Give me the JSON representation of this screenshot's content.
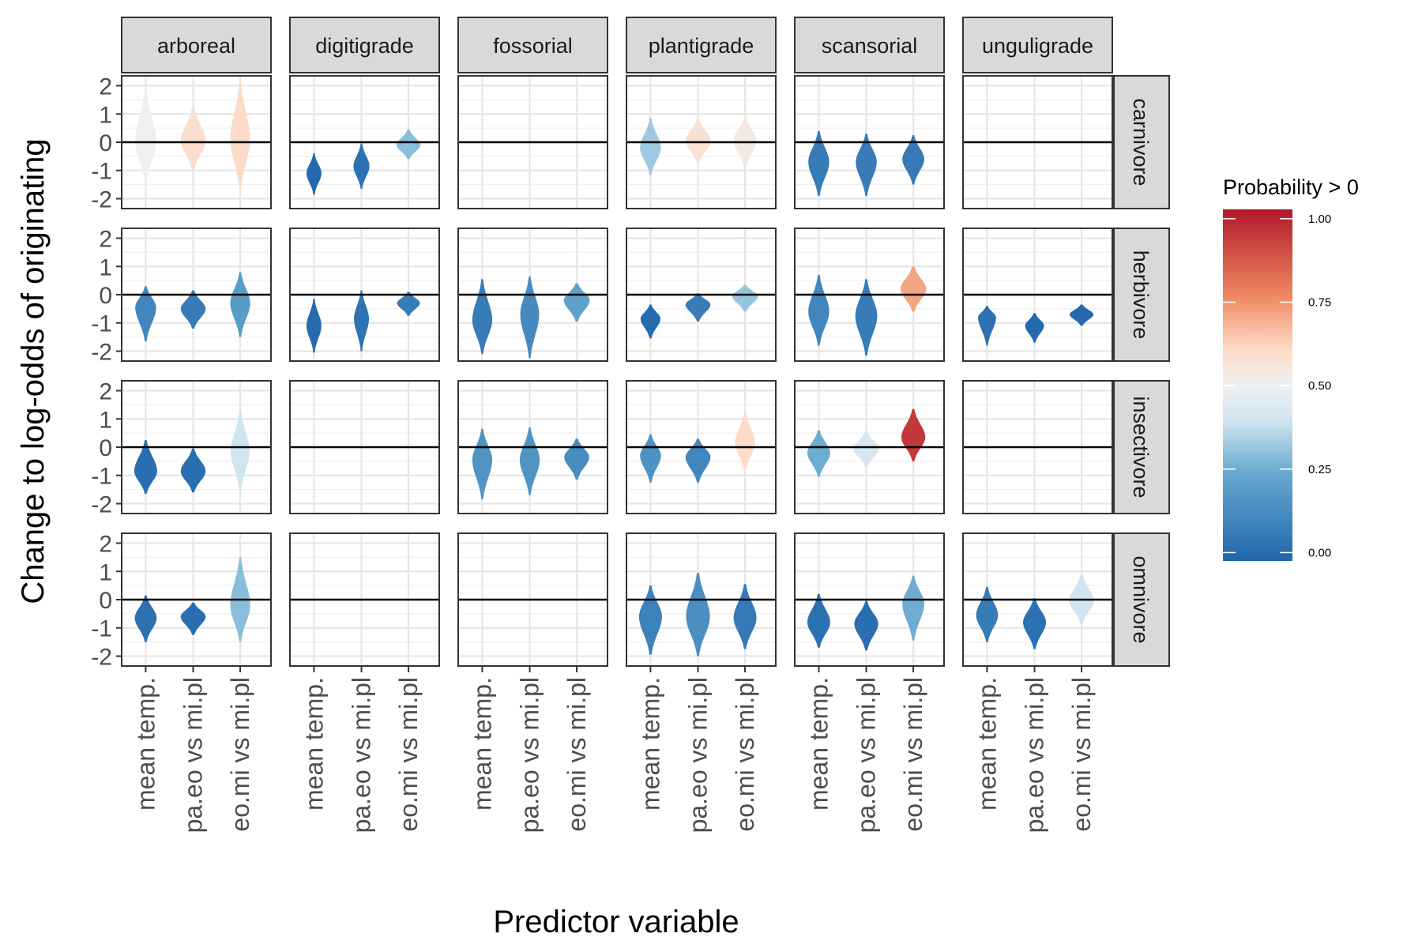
{
  "chart_data": {
    "type": "violin",
    "xlabel": "Predictor variable",
    "ylabel": "Change to log-odds of originating",
    "ylim": [
      -2.35,
      2.35
    ],
    "yticks": [
      2,
      1,
      0,
      -1,
      -2
    ],
    "ytick_labels": [
      "2",
      "1",
      "0",
      "-1",
      "-2"
    ],
    "reference_line": 0,
    "column_facets": [
      "arboreal",
      "digitigrade",
      "fossorial",
      "plantigrade",
      "scansorial",
      "unguligrade"
    ],
    "row_facets": [
      "carnivore",
      "herbivore",
      "insectivore",
      "omnivore"
    ],
    "categories": [
      "mean temp.",
      "pa.eo vs mi.pl",
      "eo.mi vs mi.pl"
    ],
    "legend": {
      "title": "Probability > 0",
      "ticks": [
        1.0,
        0.75,
        0.5,
        0.25,
        0.0
      ],
      "tick_labels": [
        "1.00",
        "0.75",
        "0.50",
        "0.25",
        "0.00"
      ],
      "colors": [
        "#B2182B",
        "#EF8A62",
        "#FDDBC7",
        "#F7F7F7",
        "#D1E5F0",
        "#67A9CF",
        "#2166AC"
      ],
      "position": "right"
    },
    "violins": [
      {
        "row": "carnivore",
        "col": "arboreal",
        "cat": "mean temp.",
        "center": 0.0,
        "min": -1.4,
        "max": 1.9,
        "width": 0.42,
        "prob": 0.49
      },
      {
        "row": "carnivore",
        "col": "arboreal",
        "cat": "pa.eo vs mi.pl",
        "center": 0.05,
        "min": -1.0,
        "max": 1.25,
        "width": 0.5,
        "prob": 0.58
      },
      {
        "row": "carnivore",
        "col": "arboreal",
        "cat": "eo.mi vs mi.pl",
        "center": 0.1,
        "min": -1.65,
        "max": 2.1,
        "width": 0.4,
        "prob": 0.6
      },
      {
        "row": "carnivore",
        "col": "digitigrade",
        "cat": "mean temp.",
        "center": -1.1,
        "min": -1.85,
        "max": -0.4,
        "width": 0.3,
        "prob": 0.01
      },
      {
        "row": "carnivore",
        "col": "digitigrade",
        "cat": "pa.eo vs mi.pl",
        "center": -0.85,
        "min": -1.65,
        "max": -0.05,
        "width": 0.32,
        "prob": 0.04
      },
      {
        "row": "carnivore",
        "col": "digitigrade",
        "cat": "eo.mi vs mi.pl",
        "center": -0.1,
        "min": -0.6,
        "max": 0.45,
        "width": 0.48,
        "prob": 0.3
      },
      {
        "row": "carnivore",
        "col": "plantigrade",
        "cat": "mean temp.",
        "center": -0.2,
        "min": -1.15,
        "max": 0.85,
        "width": 0.42,
        "prob": 0.33
      },
      {
        "row": "carnivore",
        "col": "plantigrade",
        "cat": "pa.eo vs mi.pl",
        "center": 0.05,
        "min": -0.75,
        "max": 0.85,
        "width": 0.5,
        "prob": 0.57
      },
      {
        "row": "carnivore",
        "col": "plantigrade",
        "cat": "eo.mi vs mi.pl",
        "center": 0.05,
        "min": -0.9,
        "max": 0.9,
        "width": 0.46,
        "prob": 0.54
      },
      {
        "row": "carnivore",
        "col": "scansorial",
        "cat": "mean temp.",
        "center": -0.7,
        "min": -1.9,
        "max": 0.4,
        "width": 0.42,
        "prob": 0.08
      },
      {
        "row": "carnivore",
        "col": "scansorial",
        "cat": "pa.eo vs mi.pl",
        "center": -0.7,
        "min": -1.9,
        "max": 0.3,
        "width": 0.42,
        "prob": 0.08
      },
      {
        "row": "carnivore",
        "col": "scansorial",
        "cat": "eo.mi vs mi.pl",
        "center": -0.6,
        "min": -1.5,
        "max": 0.25,
        "width": 0.44,
        "prob": 0.07
      },
      {
        "row": "herbivore",
        "col": "arboreal",
        "cat": "mean temp.",
        "center": -0.45,
        "min": -1.65,
        "max": 0.3,
        "width": 0.42,
        "prob": 0.12
      },
      {
        "row": "herbivore",
        "col": "arboreal",
        "cat": "pa.eo vs mi.pl",
        "center": -0.5,
        "min": -1.2,
        "max": 0.15,
        "width": 0.5,
        "prob": 0.08
      },
      {
        "row": "herbivore",
        "col": "arboreal",
        "cat": "eo.mi vs mi.pl",
        "center": -0.3,
        "min": -1.5,
        "max": 0.8,
        "width": 0.4,
        "prob": 0.2
      },
      {
        "row": "herbivore",
        "col": "digitigrade",
        "cat": "mean temp.",
        "center": -1.1,
        "min": -2.05,
        "max": -0.15,
        "width": 0.3,
        "prob": 0.02
      },
      {
        "row": "herbivore",
        "col": "digitigrade",
        "cat": "pa.eo vs mi.pl",
        "center": -0.85,
        "min": -2.0,
        "max": 0.15,
        "width": 0.3,
        "prob": 0.05
      },
      {
        "row": "herbivore",
        "col": "digitigrade",
        "cat": "eo.mi vs mi.pl",
        "center": -0.3,
        "min": -0.75,
        "max": 0.1,
        "width": 0.46,
        "prob": 0.08
      },
      {
        "row": "herbivore",
        "col": "fossorial",
        "cat": "mean temp.",
        "center": -0.9,
        "min": -2.1,
        "max": 0.55,
        "width": 0.4,
        "prob": 0.08
      },
      {
        "row": "herbivore",
        "col": "fossorial",
        "cat": "pa.eo vs mi.pl",
        "center": -0.7,
        "min": -2.25,
        "max": 0.65,
        "width": 0.38,
        "prob": 0.13
      },
      {
        "row": "herbivore",
        "col": "fossorial",
        "cat": "eo.mi vs mi.pl",
        "center": -0.2,
        "min": -0.95,
        "max": 0.4,
        "width": 0.52,
        "prob": 0.22
      },
      {
        "row": "herbivore",
        "col": "plantigrade",
        "cat": "mean temp.",
        "center": -0.85,
        "min": -1.55,
        "max": -0.35,
        "width": 0.4,
        "prob": 0.02
      },
      {
        "row": "herbivore",
        "col": "plantigrade",
        "cat": "pa.eo vs mi.pl",
        "center": -0.35,
        "min": -0.95,
        "max": 0.05,
        "width": 0.5,
        "prob": 0.08
      },
      {
        "row": "herbivore",
        "col": "plantigrade",
        "cat": "eo.mi vs mi.pl",
        "center": -0.05,
        "min": -0.6,
        "max": 0.35,
        "width": 0.52,
        "prob": 0.32
      },
      {
        "row": "herbivore",
        "col": "scansorial",
        "cat": "mean temp.",
        "center": -0.6,
        "min": -1.8,
        "max": 0.7,
        "width": 0.42,
        "prob": 0.12
      },
      {
        "row": "herbivore",
        "col": "scansorial",
        "cat": "pa.eo vs mi.pl",
        "center": -0.75,
        "min": -2.15,
        "max": 0.55,
        "width": 0.44,
        "prob": 0.08
      },
      {
        "row": "herbivore",
        "col": "scansorial",
        "cat": "eo.mi vs mi.pl",
        "center": 0.2,
        "min": -0.6,
        "max": 1.0,
        "width": 0.52,
        "prob": 0.7
      },
      {
        "row": "herbivore",
        "col": "unguligrade",
        "cat": "mean temp.",
        "center": -0.8,
        "min": -1.8,
        "max": -0.4,
        "width": 0.36,
        "prob": 0.04
      },
      {
        "row": "herbivore",
        "col": "unguligrade",
        "cat": "pa.eo vs mi.pl",
        "center": -1.1,
        "min": -1.7,
        "max": -0.65,
        "width": 0.38,
        "prob": 0.01
      },
      {
        "row": "herbivore",
        "col": "unguligrade",
        "cat": "eo.mi vs mi.pl",
        "center": -0.7,
        "min": -1.1,
        "max": -0.35,
        "width": 0.48,
        "prob": 0.01
      },
      {
        "row": "insectivore",
        "col": "arboreal",
        "cat": "mean temp.",
        "center": -0.85,
        "min": -1.65,
        "max": 0.25,
        "width": 0.46,
        "prob": 0.03
      },
      {
        "row": "insectivore",
        "col": "arboreal",
        "cat": "pa.eo vs mi.pl",
        "center": -0.85,
        "min": -1.6,
        "max": -0.05,
        "width": 0.5,
        "prob": 0.03
      },
      {
        "row": "insectivore",
        "col": "arboreal",
        "cat": "eo.mi vs mi.pl",
        "center": -0.15,
        "min": -1.55,
        "max": 1.3,
        "width": 0.38,
        "prob": 0.4
      },
      {
        "row": "insectivore",
        "col": "fossorial",
        "cat": "mean temp.",
        "center": -0.45,
        "min": -1.85,
        "max": 0.65,
        "width": 0.4,
        "prob": 0.17
      },
      {
        "row": "insectivore",
        "col": "fossorial",
        "cat": "pa.eo vs mi.pl",
        "center": -0.45,
        "min": -1.7,
        "max": 0.7,
        "width": 0.4,
        "prob": 0.17
      },
      {
        "row": "insectivore",
        "col": "fossorial",
        "cat": "eo.mi vs mi.pl",
        "center": -0.35,
        "min": -1.15,
        "max": 0.3,
        "width": 0.5,
        "prob": 0.14
      },
      {
        "row": "insectivore",
        "col": "plantigrade",
        "cat": "mean temp.",
        "center": -0.3,
        "min": -1.25,
        "max": 0.45,
        "width": 0.42,
        "prob": 0.16
      },
      {
        "row": "insectivore",
        "col": "plantigrade",
        "cat": "pa.eo vs mi.pl",
        "center": -0.35,
        "min": -1.25,
        "max": 0.3,
        "width": 0.5,
        "prob": 0.12
      },
      {
        "row": "insectivore",
        "col": "plantigrade",
        "cat": "eo.mi vs mi.pl",
        "center": 0.15,
        "min": -0.85,
        "max": 1.25,
        "width": 0.4,
        "prob": 0.6
      },
      {
        "row": "insectivore",
        "col": "scansorial",
        "cat": "mean temp.",
        "center": -0.2,
        "min": -1.05,
        "max": 0.6,
        "width": 0.46,
        "prob": 0.26
      },
      {
        "row": "insectivore",
        "col": "scansorial",
        "cat": "pa.eo vs mi.pl",
        "center": -0.05,
        "min": -0.7,
        "max": 0.55,
        "width": 0.52,
        "prob": 0.42
      },
      {
        "row": "insectivore",
        "col": "scansorial",
        "cat": "eo.mi vs mi.pl",
        "center": 0.35,
        "min": -0.5,
        "max": 1.35,
        "width": 0.48,
        "prob": 0.93
      },
      {
        "row": "omnivore",
        "col": "arboreal",
        "cat": "mean temp.",
        "center": -0.65,
        "min": -1.5,
        "max": 0.15,
        "width": 0.44,
        "prob": 0.04
      },
      {
        "row": "omnivore",
        "col": "arboreal",
        "cat": "pa.eo vs mi.pl",
        "center": -0.6,
        "min": -1.25,
        "max": -0.1,
        "width": 0.5,
        "prob": 0.03
      },
      {
        "row": "omnivore",
        "col": "arboreal",
        "cat": "eo.mi vs mi.pl",
        "center": -0.2,
        "min": -1.5,
        "max": 1.5,
        "width": 0.4,
        "prob": 0.3
      },
      {
        "row": "omnivore",
        "col": "plantigrade",
        "cat": "mean temp.",
        "center": -0.6,
        "min": -1.95,
        "max": 0.5,
        "width": 0.46,
        "prob": 0.1
      },
      {
        "row": "omnivore",
        "col": "plantigrade",
        "cat": "pa.eo vs mi.pl",
        "center": -0.6,
        "min": -2.0,
        "max": 0.95,
        "width": 0.48,
        "prob": 0.15
      },
      {
        "row": "omnivore",
        "col": "plantigrade",
        "cat": "eo.mi vs mi.pl",
        "center": -0.65,
        "min": -1.75,
        "max": 0.55,
        "width": 0.46,
        "prob": 0.07
      },
      {
        "row": "omnivore",
        "col": "scansorial",
        "cat": "mean temp.",
        "center": -0.8,
        "min": -1.7,
        "max": 0.2,
        "width": 0.46,
        "prob": 0.04
      },
      {
        "row": "omnivore",
        "col": "scansorial",
        "cat": "pa.eo vs mi.pl",
        "center": -0.85,
        "min": -1.8,
        "max": -0.05,
        "width": 0.48,
        "prob": 0.03
      },
      {
        "row": "omnivore",
        "col": "scansorial",
        "cat": "eo.mi vs mi.pl",
        "center": -0.15,
        "min": -1.45,
        "max": 0.85,
        "width": 0.44,
        "prob": 0.26
      },
      {
        "row": "omnivore",
        "col": "unguligrade",
        "cat": "mean temp.",
        "center": -0.55,
        "min": -1.5,
        "max": 0.45,
        "width": 0.44,
        "prob": 0.08
      },
      {
        "row": "omnivore",
        "col": "unguligrade",
        "cat": "pa.eo vs mi.pl",
        "center": -0.8,
        "min": -1.75,
        "max": 0.05,
        "width": 0.46,
        "prob": 0.04
      },
      {
        "row": "omnivore",
        "col": "unguligrade",
        "cat": "eo.mi vs mi.pl",
        "center": -0.05,
        "min": -0.85,
        "max": 0.9,
        "width": 0.5,
        "prob": 0.4
      }
    ]
  }
}
